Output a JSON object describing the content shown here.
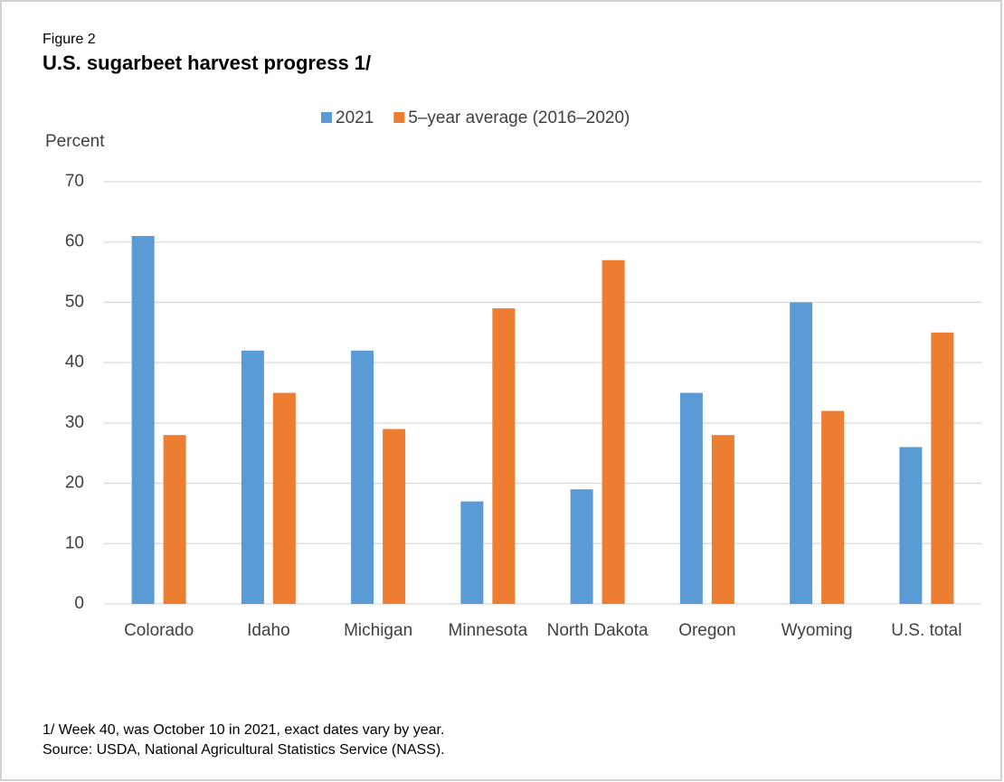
{
  "chart_data": {
    "type": "bar",
    "figure_label": "Figure 2",
    "title": "U.S. sugarbeet harvest progress  1/",
    "y_label": "Percent",
    "categories": [
      "Colorado",
      "Idaho",
      "Michigan",
      "Minnesota",
      "North Dakota",
      "Oregon",
      "Wyoming",
      "U.S. total"
    ],
    "series": [
      {
        "name": "2021",
        "color": "#5b9bd5",
        "values": [
          61,
          42,
          42,
          17,
          19,
          35,
          50,
          26
        ]
      },
      {
        "name": "5–year average (2016–2020)",
        "color": "#ed7d31",
        "values": [
          28,
          35,
          29,
          49,
          57,
          28,
          32,
          45
        ]
      }
    ],
    "ylim": [
      0,
      70
    ],
    "yticks": [
      0,
      10,
      20,
      30,
      40,
      50,
      60,
      70
    ],
    "grid": true,
    "legend": "top",
    "notes": [
      "1/ Week 40, was October 10 in 2021, exact dates vary by year.",
      "Source: USDA, National Agricultural Statistics Service (NASS)."
    ]
  }
}
